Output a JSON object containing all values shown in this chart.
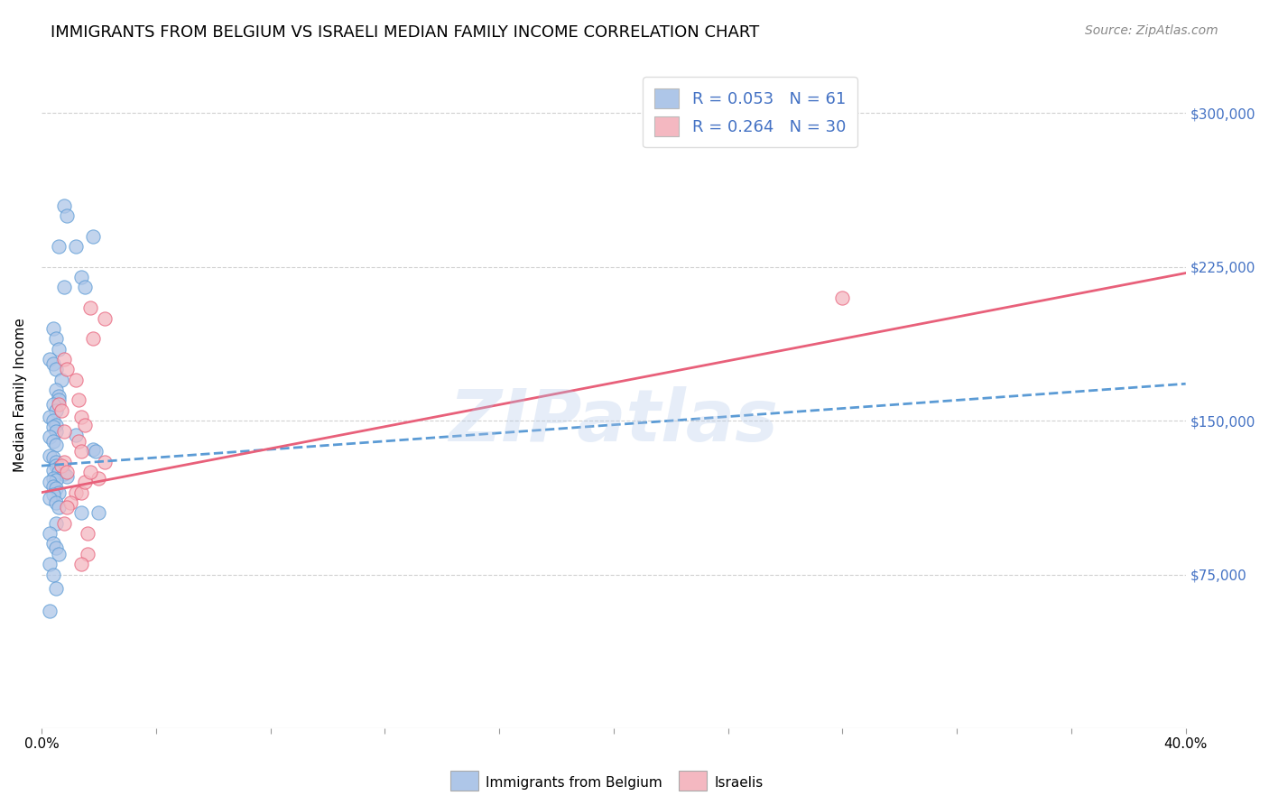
{
  "title": "IMMIGRANTS FROM BELGIUM VS ISRAELI MEDIAN FAMILY INCOME CORRELATION CHART",
  "source": "Source: ZipAtlas.com",
  "ylabel": "Median Family Income",
  "ytick_values": [
    75000,
    150000,
    225000,
    300000
  ],
  "ylim": [
    0,
    325000
  ],
  "xlim": [
    0.0,
    0.4
  ],
  "watermark": "ZIPatlas",
  "series1_color": "#aec6e8",
  "series2_color": "#f4b8c1",
  "series1_line_color": "#5b9bd5",
  "series2_line_color": "#e8607a",
  "blue_scatter_x": [
    0.008,
    0.009,
    0.018,
    0.006,
    0.012,
    0.014,
    0.008,
    0.015,
    0.004,
    0.005,
    0.006,
    0.003,
    0.004,
    0.005,
    0.007,
    0.005,
    0.006,
    0.006,
    0.004,
    0.005,
    0.003,
    0.004,
    0.005,
    0.004,
    0.005,
    0.012,
    0.003,
    0.004,
    0.005,
    0.018,
    0.019,
    0.003,
    0.004,
    0.005,
    0.005,
    0.006,
    0.004,
    0.006,
    0.008,
    0.009,
    0.004,
    0.005,
    0.003,
    0.004,
    0.005,
    0.006,
    0.004,
    0.003,
    0.005,
    0.006,
    0.014,
    0.005,
    0.003,
    0.004,
    0.005,
    0.006,
    0.003,
    0.004,
    0.005,
    0.02,
    0.003
  ],
  "blue_scatter_y": [
    255000,
    250000,
    240000,
    235000,
    235000,
    220000,
    215000,
    215000,
    195000,
    190000,
    185000,
    180000,
    178000,
    175000,
    170000,
    165000,
    162000,
    160000,
    158000,
    155000,
    152000,
    150000,
    148000,
    147000,
    145000,
    143000,
    142000,
    140000,
    138000,
    136000,
    135000,
    133000,
    132000,
    130000,
    128000,
    127000,
    126000,
    125000,
    124000,
    123000,
    122000,
    121000,
    120000,
    118000,
    117000,
    115000,
    114000,
    112000,
    110000,
    108000,
    105000,
    100000,
    95000,
    90000,
    88000,
    85000,
    80000,
    75000,
    68000,
    105000,
    57000
  ],
  "pink_scatter_x": [
    0.017,
    0.022,
    0.018,
    0.008,
    0.009,
    0.012,
    0.013,
    0.006,
    0.007,
    0.014,
    0.015,
    0.008,
    0.013,
    0.014,
    0.008,
    0.007,
    0.009,
    0.02,
    0.012,
    0.01,
    0.009,
    0.008,
    0.014,
    0.015,
    0.017,
    0.022,
    0.016,
    0.28,
    0.016,
    0.014
  ],
  "pink_scatter_y": [
    205000,
    200000,
    190000,
    180000,
    175000,
    170000,
    160000,
    158000,
    155000,
    152000,
    148000,
    145000,
    140000,
    135000,
    130000,
    128000,
    125000,
    122000,
    115000,
    110000,
    108000,
    100000,
    115000,
    120000,
    125000,
    130000,
    95000,
    210000,
    85000,
    80000
  ],
  "blue_line_x": [
    0.0,
    0.4
  ],
  "blue_line_y": [
    128000,
    168000
  ],
  "pink_line_x": [
    0.0,
    0.4
  ],
  "pink_line_y": [
    115000,
    222000
  ],
  "grid_color": "#cccccc",
  "background_color": "#ffffff",
  "title_fontsize": 13,
  "axis_label_fontsize": 11,
  "tick_fontsize": 11,
  "source_fontsize": 10,
  "scatter_size": 120
}
